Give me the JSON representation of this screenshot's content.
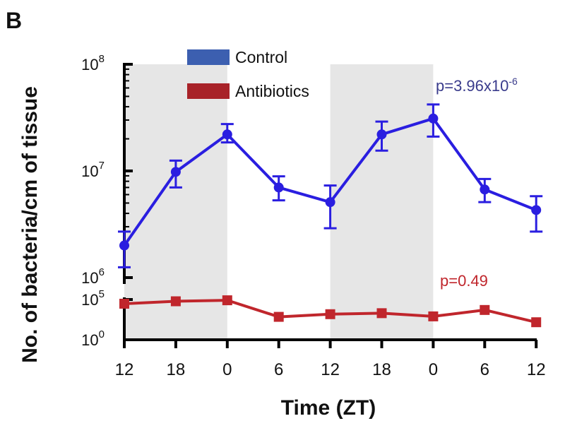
{
  "panel_label": "B",
  "chart_data": {
    "type": "line",
    "xlabel": "Time (ZT)",
    "ylabel": "No. of bacteria/cm of tissue",
    "x_tick_labels": [
      "12",
      "18",
      "0",
      "6",
      "12",
      "18",
      "0",
      "6",
      "12"
    ],
    "y_scale": "log",
    "ylim_upper": [
      1000000,
      100000000
    ],
    "ylim_lower": [
      1,
      100000
    ],
    "y_ticks_upper": [
      {
        "value": 100000000,
        "base": "10",
        "exp": "8"
      },
      {
        "value": 10000000,
        "base": "10",
        "exp": "7"
      },
      {
        "value": 1000000,
        "base": "10",
        "exp": "6"
      }
    ],
    "y_ticks_lower": [
      {
        "value": 100000,
        "base": "10",
        "exp": "5"
      },
      {
        "value": 1,
        "base": "10",
        "exp": "0"
      }
    ],
    "shaded_periods": [
      [
        0,
        2
      ],
      [
        4,
        6
      ]
    ],
    "legend_position": "top-left",
    "series": [
      {
        "name": "Control",
        "color": "#2a1ee0",
        "legend_color": "#3c5fb0",
        "marker": "circle",
        "values": [
          2000000,
          9800000,
          22000000,
          7000000,
          5100000,
          22000000,
          31000000,
          6700000,
          4300000
        ],
        "err_low": [
          1250000,
          7000000,
          18500000,
          5300000,
          2900000,
          15500000,
          21000000,
          5100000,
          2700000
        ],
        "err_high": [
          2700000,
          12500000,
          27500000,
          8900000,
          7300000,
          29000000,
          42000000,
          8400000,
          5800000
        ],
        "p_text": "p=3.96x10",
        "p_exp": "-6",
        "p_color": "#3a3c8c"
      },
      {
        "name": "Antibiotics",
        "color": "#c0262c",
        "legend_color": "#a82228",
        "marker": "square",
        "values": [
          30000,
          60000,
          80000,
          700,
          1500,
          2000,
          800,
          5000,
          150
        ],
        "p_text": "p=0.49",
        "p_color": "#c0262c"
      }
    ]
  }
}
